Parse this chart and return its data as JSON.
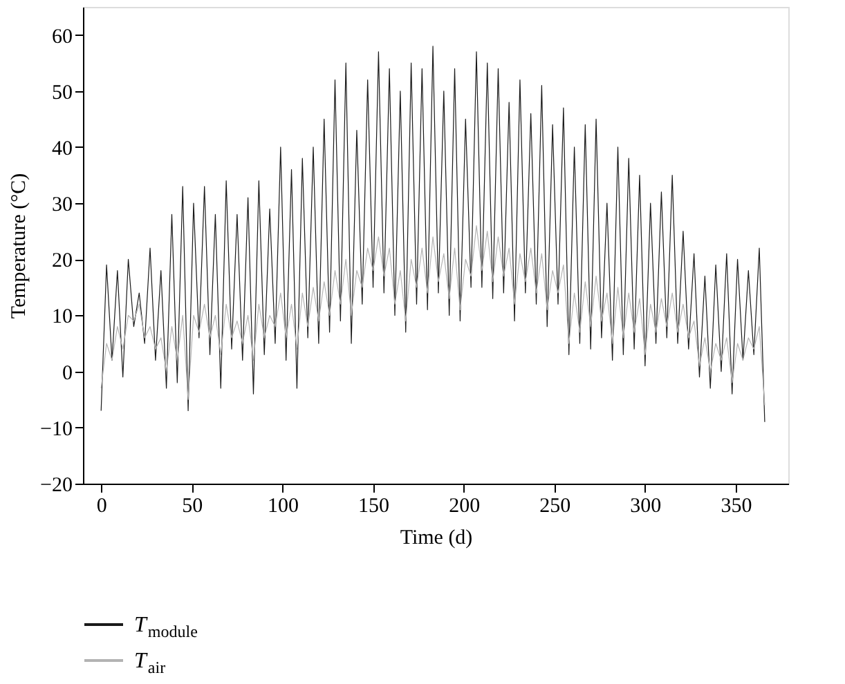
{
  "chart_data": {
    "type": "line",
    "xlabel": "Time (d)",
    "ylabel": "Temperature (°C)",
    "x": [
      0,
      3,
      6,
      9,
      12,
      15,
      18,
      21,
      24,
      27,
      30,
      33,
      36,
      39,
      42,
      45,
      48,
      51,
      54,
      57,
      60,
      63,
      66,
      69,
      72,
      75,
      78,
      81,
      84,
      87,
      90,
      93,
      96,
      99,
      102,
      105,
      108,
      111,
      114,
      117,
      120,
      123,
      126,
      129,
      132,
      135,
      138,
      141,
      144,
      147,
      150,
      153,
      156,
      159,
      162,
      165,
      168,
      171,
      174,
      177,
      180,
      183,
      186,
      189,
      192,
      195,
      198,
      201,
      204,
      207,
      210,
      213,
      216,
      219,
      222,
      225,
      228,
      231,
      234,
      237,
      240,
      243,
      246,
      249,
      252,
      255,
      258,
      261,
      264,
      267,
      270,
      273,
      276,
      279,
      282,
      285,
      288,
      291,
      294,
      297,
      300,
      303,
      306,
      309,
      312,
      315,
      318,
      321,
      324,
      327,
      330,
      333,
      336,
      339,
      342,
      345,
      348,
      351,
      354,
      357,
      360,
      363,
      366
    ],
    "series": [
      {
        "name": "T$_{module}$",
        "color": "#1a1a1a",
        "values": [
          -7,
          19,
          2,
          18,
          -1,
          20,
          8,
          14,
          5,
          22,
          2,
          18,
          -3,
          28,
          -2,
          33,
          -7,
          30,
          6,
          33,
          3,
          28,
          -3,
          34,
          4,
          28,
          2,
          31,
          -4,
          34,
          3,
          29,
          5,
          40,
          2,
          36,
          -3,
          38,
          6,
          40,
          5,
          45,
          7,
          52,
          9,
          55,
          5,
          43,
          12,
          52,
          15,
          57,
          14,
          54,
          10,
          50,
          7,
          55,
          12,
          54,
          11,
          58,
          14,
          50,
          10,
          54,
          9,
          45,
          15,
          57,
          15,
          55,
          13,
          54,
          14,
          48,
          9,
          52,
          14,
          46,
          12,
          51,
          8,
          44,
          12,
          47,
          3,
          40,
          5,
          44,
          4,
          45,
          6,
          30,
          2,
          40,
          3,
          38,
          4,
          35,
          1,
          30,
          5,
          32,
          6,
          35,
          5,
          25,
          4,
          21,
          -1,
          17,
          -3,
          19,
          0,
          21,
          -4,
          20,
          2,
          18,
          3,
          22,
          -9
        ]
      },
      {
        "name": "T$_{air}$",
        "color": "#b3b3b3",
        "values": [
          -3,
          5,
          2,
          8,
          4,
          10,
          9,
          12,
          6,
          8,
          4,
          6,
          0,
          8,
          2,
          10,
          -5,
          10,
          7,
          12,
          6,
          10,
          3,
          12,
          6,
          9,
          5,
          10,
          2,
          12,
          6,
          10,
          8,
          14,
          6,
          12,
          4,
          14,
          8,
          15,
          9,
          16,
          10,
          18,
          12,
          20,
          10,
          18,
          15,
          22,
          18,
          24,
          17,
          22,
          12,
          18,
          9,
          20,
          15,
          22,
          14,
          24,
          16,
          21,
          13,
          22,
          11,
          20,
          17,
          26,
          18,
          25,
          16,
          24,
          17,
          22,
          12,
          21,
          16,
          22,
          14,
          21,
          11,
          18,
          14,
          19,
          5,
          14,
          7,
          16,
          8,
          17,
          9,
          14,
          5,
          15,
          6,
          14,
          7,
          13,
          3,
          12,
          7,
          13,
          8,
          14,
          7,
          12,
          6,
          9,
          1,
          6,
          0,
          5,
          2,
          6,
          -2,
          5,
          2,
          6,
          4,
          8,
          -6
        ]
      }
    ],
    "xlim": [
      -10,
      379
    ],
    "xticks": [
      0,
      50,
      100,
      150,
      200,
      250,
      300,
      350
    ],
    "ylim": [
      -20,
      65
    ],
    "yticks": [
      -20,
      -10,
      0,
      10,
      20,
      30,
      40,
      50,
      60
    ],
    "grid": false,
    "legend": "bottom left"
  }
}
